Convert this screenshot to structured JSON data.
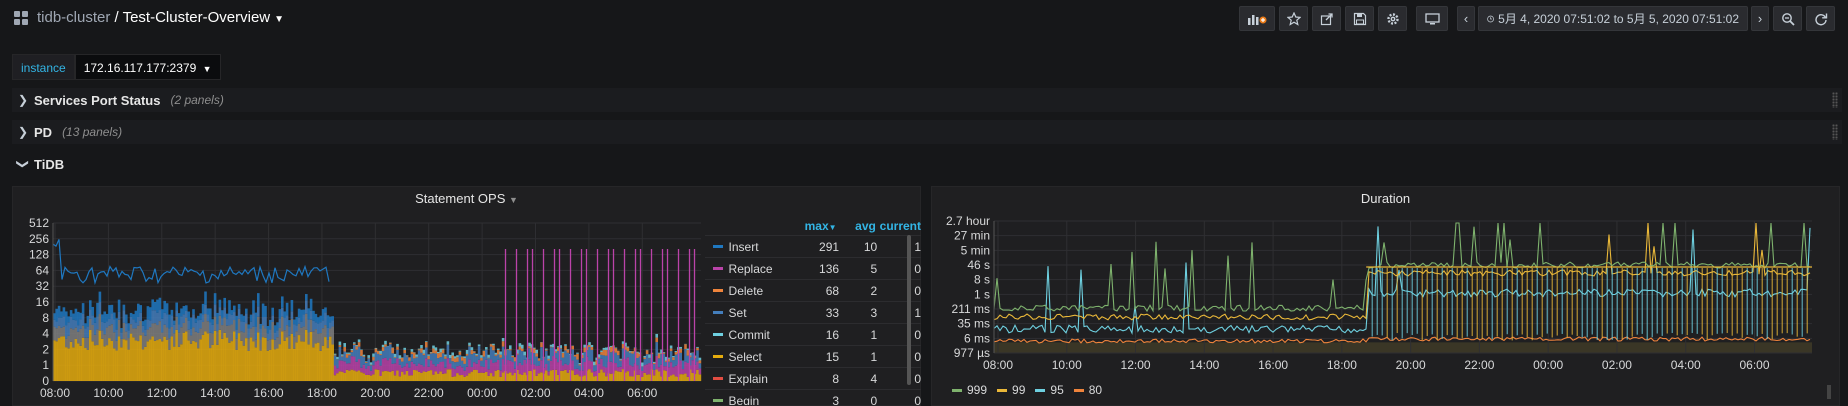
{
  "breadcrumb": {
    "folder": "tidb-cluster",
    "separator": " / ",
    "dashboard": "Test-Cluster-Overview"
  },
  "toolbar": {
    "time_range": "5月 4, 2020 07:51:02 to 5月 5, 2020 07:51:02"
  },
  "variables": {
    "instance_label": "instance",
    "instance_value": "172.16.117.177:2379"
  },
  "rows": [
    {
      "title": "Services Port Status",
      "count": "(2 panels)",
      "collapsed": true
    },
    {
      "title": "PD",
      "count": "(13 panels)",
      "collapsed": true
    },
    {
      "title": "TiDB",
      "count": "",
      "collapsed": false
    }
  ],
  "panels": {
    "statement_ops": {
      "title": "Statement OPS",
      "legend_headers": {
        "max": "max",
        "avg": "avg",
        "current": "current"
      },
      "legend": [
        {
          "name": "Insert",
          "color": "#1f78c1",
          "max": "291",
          "avg": "10",
          "current": "1"
        },
        {
          "name": "Replace",
          "color": "#ba43a9",
          "max": "136",
          "avg": "5",
          "current": "0"
        },
        {
          "name": "Delete",
          "color": "#ef843c",
          "max": "68",
          "avg": "2",
          "current": "0"
        },
        {
          "name": "Set",
          "color": "#447ebc",
          "max": "33",
          "avg": "3",
          "current": "1"
        },
        {
          "name": "Commit",
          "color": "#6ed0e0",
          "max": "16",
          "avg": "1",
          "current": "0"
        },
        {
          "name": "Select",
          "color": "#e5ac0e",
          "max": "15",
          "avg": "1",
          "current": "0"
        },
        {
          "name": "Explain",
          "color": "#e24d42",
          "max": "8",
          "avg": "4",
          "current": "0"
        },
        {
          "name": "Begin",
          "color": "#7eb26d",
          "max": "3",
          "avg": "0",
          "current": "0"
        }
      ]
    },
    "duration": {
      "title": "Duration",
      "legend": [
        {
          "name": "999",
          "color": "#7eb26d"
        },
        {
          "name": "99",
          "color": "#eab839"
        },
        {
          "name": "95",
          "color": "#6ed0e0"
        },
        {
          "name": "80",
          "color": "#ef843c"
        }
      ]
    }
  },
  "chart_data": [
    {
      "type": "area",
      "title": "Statement OPS",
      "y_scale": "log2",
      "y_ticks": [
        "0",
        "1",
        "2",
        "4",
        "8",
        "16",
        "32",
        "64",
        "128",
        "256",
        "512"
      ],
      "x_ticks": [
        "08:00",
        "10:00",
        "12:00",
        "14:00",
        "16:00",
        "18:00",
        "20:00",
        "22:00",
        "00:00",
        "02:00",
        "04:00",
        "06:00"
      ],
      "series": [
        {
          "name": "Insert",
          "max": 291,
          "avg": 10,
          "current": 1
        },
        {
          "name": "Replace",
          "max": 136,
          "avg": 5,
          "current": 0
        },
        {
          "name": "Delete",
          "max": 68,
          "avg": 2,
          "current": 0
        },
        {
          "name": "Set",
          "max": 33,
          "avg": 3,
          "current": 1
        },
        {
          "name": "Commit",
          "max": 16,
          "avg": 1,
          "current": 0
        },
        {
          "name": "Select",
          "max": 15,
          "avg": 1,
          "current": 0
        },
        {
          "name": "Explain",
          "max": 8,
          "avg": 4,
          "current": 0
        },
        {
          "name": "Begin",
          "max": 3,
          "avg": 0,
          "current": 0
        }
      ]
    },
    {
      "type": "line",
      "title": "Duration",
      "y_scale": "log",
      "y_ticks": [
        "977 µs",
        "6 ms",
        "35 ms",
        "211 ms",
        "1 s",
        "8 s",
        "46 s",
        "5 min",
        "27 min",
        "2.7 hour"
      ],
      "x_ticks": [
        "08:00",
        "10:00",
        "12:00",
        "14:00",
        "16:00",
        "18:00",
        "20:00",
        "22:00",
        "00:00",
        "02:00",
        "04:00",
        "06:00"
      ],
      "series": [
        {
          "name": "999"
        },
        {
          "name": "99"
        },
        {
          "name": "95"
        },
        {
          "name": "80"
        }
      ]
    }
  ]
}
